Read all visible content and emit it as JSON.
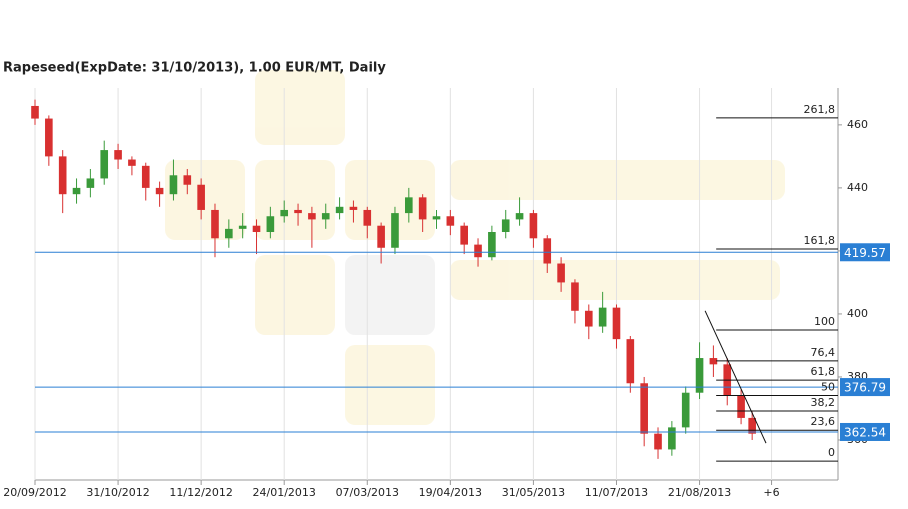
{
  "chart_data": {
    "type": "candlestick",
    "title": "Rapeseed(ExpDate: 31/10/2013), 1.00 EUR/MT, Daily",
    "x": [
      0,
      5,
      10,
      15,
      20,
      25,
      30,
      35,
      40,
      45,
      50,
      55,
      60,
      65,
      70,
      75,
      80,
      85,
      90,
      95,
      100,
      105,
      110,
      115,
      120,
      125,
      130,
      135,
      140,
      145,
      150,
      155,
      160,
      165,
      170,
      175,
      180,
      185,
      190,
      195,
      200,
      205,
      210,
      215,
      220,
      225,
      230,
      235,
      240,
      245,
      250,
      255,
      259
    ],
    "open": [
      466,
      462,
      450,
      438,
      440,
      443,
      452,
      449,
      447,
      440,
      438,
      444,
      441,
      433,
      424,
      427,
      428,
      426,
      431,
      433,
      432,
      430,
      432,
      434,
      433,
      428,
      421,
      432,
      437,
      430,
      431,
      428,
      422,
      418,
      426,
      430,
      432,
      424,
      416,
      410,
      401,
      396,
      402,
      392,
      378,
      362,
      357,
      364,
      375,
      386,
      384,
      374,
      367
    ],
    "high": [
      468,
      463,
      452,
      443,
      446,
      455,
      454,
      450,
      448,
      442,
      449,
      446,
      443,
      435,
      430,
      432,
      430,
      434,
      436,
      435,
      434,
      435,
      437,
      436,
      434,
      429,
      434,
      440,
      438,
      433,
      433,
      429,
      424,
      428,
      433,
      437,
      433,
      425,
      418,
      411,
      403,
      407,
      403,
      393,
      380,
      364,
      366,
      377,
      391,
      390,
      386,
      376,
      369
    ],
    "low": [
      460,
      447,
      432,
      435,
      437,
      441,
      446,
      444,
      436,
      434,
      436,
      438,
      430,
      418,
      421,
      424,
      419,
      424,
      429,
      428,
      421,
      427,
      430,
      429,
      424,
      416,
      419,
      429,
      426,
      427,
      425,
      419,
      415,
      417,
      424,
      428,
      421,
      413,
      407,
      397,
      392,
      394,
      389,
      375,
      358,
      354,
      355,
      362,
      373,
      380,
      371,
      365,
      360
    ],
    "close": [
      462,
      450,
      438,
      440,
      443,
      452,
      449,
      447,
      440,
      438,
      444,
      441,
      433,
      424,
      427,
      428,
      426,
      431,
      433,
      432,
      430,
      432,
      434,
      433,
      428,
      421,
      432,
      437,
      430,
      431,
      428,
      422,
      418,
      426,
      430,
      432,
      424,
      416,
      410,
      401,
      396,
      402,
      392,
      378,
      362,
      357,
      364,
      375,
      386,
      384,
      374,
      367,
      362
    ],
    "up_color": "#3a9a3a",
    "down_color": "#d83030",
    "xlim": [
      0,
      290
    ],
    "xticks": [
      {
        "value": 0,
        "label": "20/09/2012"
      },
      {
        "value": 30,
        "label": "31/10/2012"
      },
      {
        "value": 60,
        "label": "11/12/2012"
      },
      {
        "value": 90,
        "label": "24/01/2013"
      },
      {
        "value": 120,
        "label": "07/03/2013"
      },
      {
        "value": 150,
        "label": "19/04/2013"
      },
      {
        "value": 180,
        "label": "31/05/2013"
      },
      {
        "value": 210,
        "label": "11/07/2013"
      },
      {
        "value": 240,
        "label": "21/08/2013"
      },
      {
        "value": 266,
        "label": "+6"
      }
    ],
    "ylim": [
      347.3,
      471.7
    ],
    "yticks": [
      360,
      380,
      400,
      420,
      440,
      460
    ],
    "grid": "x",
    "price_lines": [
      419.57,
      376.79,
      362.54
    ],
    "price_line_color": "#2a7fd4",
    "fibonacci": {
      "x_start": 246,
      "levels": [
        {
          "ratio": "261,8",
          "price": 462.2
        },
        {
          "ratio": "161,8",
          "price": 420.6
        },
        {
          "ratio": "100",
          "price": 394.9
        },
        {
          "ratio": "76,4",
          "price": 385.1
        },
        {
          "ratio": "61,8",
          "price": 379.0
        },
        {
          "ratio": "50",
          "price": 374.1
        },
        {
          "ratio": "38,2",
          "price": 369.2
        },
        {
          "ratio": "23,6",
          "price": 363.1
        },
        {
          "ratio": "0",
          "price": 353.3
        }
      ]
    },
    "trend_line": {
      "x": [
        242,
        264
      ],
      "y": [
        401,
        359
      ]
    }
  }
}
